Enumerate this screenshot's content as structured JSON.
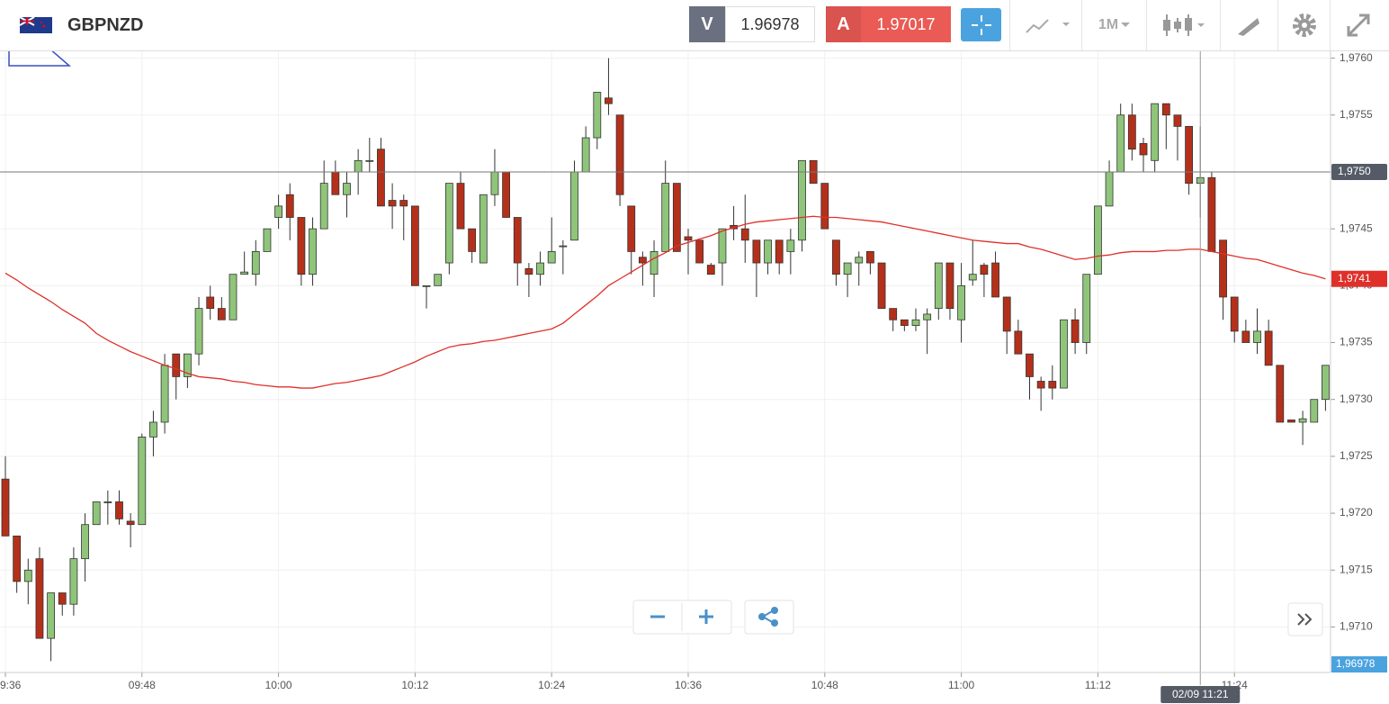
{
  "header": {
    "symbol": "GBPNZD",
    "bid_label": "V",
    "bid": "1.96978",
    "ask_label": "A",
    "ask": "1.97017",
    "timeframe": "1M"
  },
  "chart_data": {
    "type": "candlestick",
    "up_color": "#8fc57a",
    "down_color": "#b5301a",
    "grid": true,
    "ylim": [
      1.9706,
      1.97606
    ],
    "yticks": [
      {
        "value": 1.971,
        "label": "1,9710"
      },
      {
        "value": 1.9715,
        "label": "1,9715"
      },
      {
        "value": 1.972,
        "label": "1,9720"
      },
      {
        "value": 1.9725,
        "label": "1,9725"
      },
      {
        "value": 1.973,
        "label": "1,9730"
      },
      {
        "value": 1.9735,
        "label": "1,9735"
      },
      {
        "value": 1.974,
        "label": "1,9740"
      },
      {
        "value": 1.9745,
        "label": "1,9745"
      },
      {
        "value": 1.975,
        "label": "1,9750"
      },
      {
        "value": 1.9755,
        "label": "1,9755"
      },
      {
        "value": 1.976,
        "label": "1,9760"
      }
    ],
    "xticks": [
      {
        "value": 0,
        "label": "9:36"
      },
      {
        "value": 12,
        "label": "09:48"
      },
      {
        "value": 24,
        "label": "10:00"
      },
      {
        "value": 36,
        "label": "10:12"
      },
      {
        "value": 48,
        "label": "10:24"
      },
      {
        "value": 60,
        "label": "10:36"
      },
      {
        "value": 72,
        "label": "10:48"
      },
      {
        "value": 84,
        "label": "11:00"
      },
      {
        "value": 96,
        "label": "11:12"
      },
      {
        "value": 108,
        "label": "11:24"
      }
    ],
    "open": [
      1.9723,
      1.9718,
      1.9714,
      1.9716,
      1.9709,
      1.9713,
      1.9712,
      1.9716,
      1.9719,
      1.9721,
      1.9721,
      1.97193,
      1.9719,
      1.97267,
      1.9728,
      1.9734,
      1.9732,
      1.9734,
      1.9739,
      1.9738,
      1.9737,
      1.9741,
      1.9741,
      1.9743,
      1.9746,
      1.9748,
      1.9746,
      1.9741,
      1.9745,
      1.975,
      1.9748,
      1.975,
      1.9751,
      1.9752,
      1.97475,
      1.97475,
      1.9747,
      1.974,
      1.974,
      1.9742,
      1.9749,
      1.9745,
      1.9742,
      1.9748,
      1.975,
      1.9746,
      1.97415,
      1.9741,
      1.9742,
      1.97435,
      1.9744,
      1.975,
      1.9753,
      1.97565,
      1.9755,
      1.9747,
      1.97425,
      1.9741,
      1.9743,
      1.9749,
      1.97443,
      1.9744,
      1.97418,
      1.9742,
      1.97453,
      1.9745,
      1.9744,
      1.9742,
      1.9744,
      1.9743,
      1.9744,
      1.9751,
      1.9749,
      1.9744,
      1.9741,
      1.9742,
      1.9743,
      1.9742,
      1.9738,
      1.9737,
      1.97365,
      1.9737,
      1.9738,
      1.9742,
      1.9737,
      1.97405,
      1.97418,
      1.9742,
      1.9739,
      1.9736,
      1.9734,
      1.97316,
      1.97316,
      1.9731,
      1.9737,
      1.9735,
      1.9741,
      1.9747,
      1.975,
      1.9755,
      1.97525,
      1.9751,
      1.9756,
      1.9755,
      1.9754,
      1.9749,
      1.97495,
      1.9744,
      1.9739,
      1.9736,
      1.9735,
      1.9736,
      1.9733,
      1.97282,
      1.9728,
      1.9728,
      1.973
    ],
    "high": [
      1.9725,
      1.9718,
      1.9716,
      1.9717,
      1.9713,
      1.9713,
      1.9717,
      1.972,
      1.9721,
      1.9722,
      1.9722,
      1.972,
      1.9727,
      1.9729,
      1.9734,
      1.9734,
      1.9734,
      1.9739,
      1.974,
      1.9739,
      1.9741,
      1.9743,
      1.9744,
      1.9745,
      1.9748,
      1.9749,
      1.9746,
      1.9746,
      1.9751,
      1.9751,
      1.975,
      1.9752,
      1.9753,
      1.9753,
      1.9749,
      1.9748,
      1.9747,
      1.974,
      1.9741,
      1.9749,
      1.975,
      1.9745,
      1.9748,
      1.9752,
      1.975,
      1.9746,
      1.9742,
      1.9743,
      1.9746,
      1.9744,
      1.9751,
      1.9754,
      1.9757,
      1.976,
      1.9755,
      1.9747,
      1.9743,
      1.9744,
      1.9751,
      1.9749,
      1.9745,
      1.9744,
      1.9742,
      1.9745,
      1.9747,
      1.9748,
      1.9744,
      1.9744,
      1.9744,
      1.9745,
      1.9751,
      1.9751,
      1.9749,
      1.9744,
      1.9742,
      1.9743,
      1.9743,
      1.9742,
      1.9738,
      1.9737,
      1.9738,
      1.9738,
      1.9742,
      1.9742,
      1.9742,
      1.9744,
      1.9742,
      1.9743,
      1.9739,
      1.9737,
      1.9734,
      1.9732,
      1.9733,
      1.9737,
      1.9738,
      1.9741,
      1.9747,
      1.9751,
      1.9756,
      1.9756,
      1.9753,
      1.9756,
      1.9756,
      1.9755,
      1.9754,
      1.9754,
      1.975,
      1.9744,
      1.9739,
      1.9737,
      1.9738,
      1.9737,
      1.9733,
      1.9728,
      1.9729,
      1.973,
      1.9733
    ],
    "low": [
      1.9718,
      1.9713,
      1.9712,
      1.9709,
      1.9707,
      1.9711,
      1.9711,
      1.9714,
      1.9719,
      1.9719,
      1.9719,
      1.9717,
      1.9719,
      1.9725,
      1.9727,
      1.973,
      1.9731,
      1.9733,
      1.9737,
      1.9737,
      1.9737,
      1.9741,
      1.974,
      1.9743,
      1.9745,
      1.9744,
      1.974,
      1.974,
      1.9745,
      1.9748,
      1.9746,
      1.9748,
      1.975,
      1.9747,
      1.9745,
      1.9744,
      1.974,
      1.9738,
      1.974,
      1.9741,
      1.9745,
      1.9742,
      1.9742,
      1.9747,
      1.9746,
      1.974,
      1.9739,
      1.974,
      1.9742,
      1.9741,
      1.9744,
      1.975,
      1.9752,
      1.9755,
      1.9747,
      1.9741,
      1.974,
      1.9739,
      1.9743,
      1.9743,
      1.9741,
      1.9742,
      1.9741,
      1.974,
      1.9744,
      1.9742,
      1.9739,
      1.9741,
      1.9741,
      1.9741,
      1.9743,
      1.9749,
      1.9745,
      1.974,
      1.9739,
      1.974,
      1.9741,
      1.9738,
      1.9736,
      1.9736,
      1.9736,
      1.9734,
      1.9737,
      1.9737,
      1.9735,
      1.974,
      1.9739,
      1.9739,
      1.9734,
      1.9734,
      1.973,
      1.9729,
      1.973,
      1.9731,
      1.9734,
      1.9734,
      1.9741,
      1.9747,
      1.975,
      1.9751,
      1.975,
      1.975,
      1.9752,
      1.9751,
      1.9748,
      1.9746,
      1.9743,
      1.9737,
      1.9735,
      1.9735,
      1.9734,
      1.9733,
      1.9728,
      1.9728,
      1.9726,
      1.9728,
      1.9729
    ],
    "close": [
      1.9718,
      1.9714,
      1.9715,
      1.9709,
      1.9713,
      1.9712,
      1.9716,
      1.9719,
      1.9721,
      1.9721,
      1.97195,
      1.9719,
      1.97267,
      1.9728,
      1.9733,
      1.9732,
      1.9734,
      1.9738,
      1.9738,
      1.9737,
      1.9741,
      1.97412,
      1.9743,
      1.9745,
      1.9747,
      1.9746,
      1.9741,
      1.9745,
      1.9749,
      1.9748,
      1.9749,
      1.9751,
      1.9751,
      1.9747,
      1.9747,
      1.9747,
      1.974,
      1.974,
      1.9741,
      1.9749,
      1.9745,
      1.9743,
      1.9748,
      1.975,
      1.9746,
      1.9742,
      1.9741,
      1.9742,
      1.9743,
      1.97435,
      1.975,
      1.9753,
      1.9757,
      1.9756,
      1.9748,
      1.9743,
      1.9742,
      1.9743,
      1.9749,
      1.9743,
      1.9744,
      1.9742,
      1.9741,
      1.9745,
      1.9745,
      1.9744,
      1.9742,
      1.9744,
      1.9742,
      1.9744,
      1.9751,
      1.9749,
      1.9745,
      1.9741,
      1.9742,
      1.97425,
      1.9742,
      1.9738,
      1.9737,
      1.97365,
      1.9737,
      1.97375,
      1.9742,
      1.9738,
      1.974,
      1.9741,
      1.9741,
      1.9739,
      1.9736,
      1.9734,
      1.9732,
      1.9731,
      1.9731,
      1.9737,
      1.9735,
      1.9741,
      1.9747,
      1.975,
      1.9755,
      1.9752,
      1.97515,
      1.9756,
      1.9755,
      1.9754,
      1.9749,
      1.97495,
      1.9743,
      1.9739,
      1.9736,
      1.9735,
      1.9736,
      1.9733,
      1.9728,
      1.9728,
      1.97283,
      1.973,
      1.9733
    ],
    "ma": {
      "color": "#e0302a",
      "label": "1,9741",
      "values": [
        1.97411,
        1.97405,
        1.97398,
        1.97392,
        1.97386,
        1.97379,
        1.97373,
        1.97367,
        1.97358,
        1.97352,
        1.97347,
        1.97342,
        1.97338,
        1.97334,
        1.9733,
        1.97327,
        1.97323,
        1.9732,
        1.97319,
        1.97318,
        1.97316,
        1.97315,
        1.97313,
        1.97312,
        1.97311,
        1.97311,
        1.9731,
        1.9731,
        1.97312,
        1.97314,
        1.97315,
        1.97317,
        1.97319,
        1.97321,
        1.97325,
        1.97329,
        1.97333,
        1.97338,
        1.97342,
        1.97346,
        1.97348,
        1.97349,
        1.97351,
        1.97352,
        1.97354,
        1.97356,
        1.97358,
        1.9736,
        1.97362,
        1.97367,
        1.97375,
        1.97383,
        1.97391,
        1.974,
        1.97406,
        1.97412,
        1.97418,
        1.97424,
        1.97429,
        1.97435,
        1.97438,
        1.97441,
        1.97444,
        1.97448,
        1.97451,
        1.97454,
        1.97456,
        1.97457,
        1.97458,
        1.97459,
        1.9746,
        1.97461,
        1.9746,
        1.9746,
        1.97459,
        1.97458,
        1.97457,
        1.97456,
        1.97454,
        1.97452,
        1.9745,
        1.97448,
        1.97446,
        1.97444,
        1.97442,
        1.9744,
        1.97439,
        1.97438,
        1.97437,
        1.97437,
        1.97434,
        1.97432,
        1.97429,
        1.97426,
        1.97423,
        1.97424,
        1.97426,
        1.97427,
        1.97429,
        1.9743,
        1.9743,
        1.9743,
        1.97431,
        1.97431,
        1.97432,
        1.97432,
        1.9743,
        1.97428,
        1.97426,
        1.97424,
        1.97423,
        1.9742,
        1.97417,
        1.97414,
        1.97411,
        1.97409,
        1.97406
      ]
    },
    "crosshair": {
      "index": 105,
      "value": 1.975,
      "x_label": "02/09 11:21",
      "y_label": "1,9750"
    },
    "bid_line": {
      "label": "1,96978",
      "color": "#4aa3df"
    }
  }
}
